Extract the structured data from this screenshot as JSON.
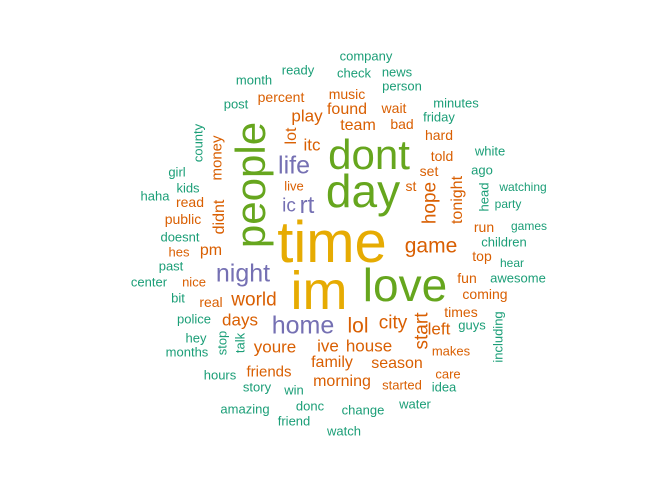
{
  "colors": {
    "green": "#1b9e77",
    "orange": "#d95f02",
    "purple": "#7570b3",
    "lime": "#66a61e",
    "gold": "#e6ab02"
  },
  "words": [
    {
      "text": "time",
      "color": "gold",
      "weight": 10
    },
    {
      "text": "im",
      "color": "gold",
      "weight": 9
    },
    {
      "text": "love",
      "color": "lime",
      "weight": 8
    },
    {
      "text": "day",
      "color": "lime",
      "weight": 8
    },
    {
      "text": "dont",
      "color": "lime",
      "weight": 8
    },
    {
      "text": "people",
      "color": "lime",
      "weight": 8
    },
    {
      "text": "home",
      "color": "purple",
      "weight": 5
    },
    {
      "text": "night",
      "color": "purple",
      "weight": 5
    },
    {
      "text": "life",
      "color": "purple",
      "weight": 5
    },
    {
      "text": "rt",
      "color": "purple",
      "weight": 5
    },
    {
      "text": "ic",
      "color": "purple",
      "weight": 4
    },
    {
      "text": "game",
      "color": "orange",
      "weight": 4
    },
    {
      "text": "lol",
      "color": "orange",
      "weight": 4
    },
    {
      "text": "world",
      "color": "orange",
      "weight": 4
    },
    {
      "text": "city",
      "color": "orange",
      "weight": 4
    },
    {
      "text": "hope",
      "color": "orange",
      "weight": 3
    },
    {
      "text": "start",
      "color": "orange",
      "weight": 3
    },
    {
      "text": "days",
      "color": "orange",
      "weight": 3
    },
    {
      "text": "youre",
      "color": "orange",
      "weight": 3
    },
    {
      "text": "ive",
      "color": "orange",
      "weight": 3
    },
    {
      "text": "house",
      "color": "orange",
      "weight": 3
    },
    {
      "text": "didnt",
      "color": "orange",
      "weight": 3
    },
    {
      "text": "tonight",
      "color": "orange",
      "weight": 3
    },
    {
      "text": "left",
      "color": "orange",
      "weight": 3
    },
    {
      "text": "play",
      "color": "orange",
      "weight": 3
    },
    {
      "text": "itc",
      "color": "orange",
      "weight": 3
    },
    {
      "text": "lot",
      "color": "orange",
      "weight": 3
    },
    {
      "text": "pm",
      "color": "orange",
      "weight": 3
    },
    {
      "text": "team",
      "color": "orange",
      "weight": 3
    },
    {
      "text": "found",
      "color": "orange",
      "weight": 3
    },
    {
      "text": "family",
      "color": "orange",
      "weight": 3
    },
    {
      "text": "season",
      "color": "orange",
      "weight": 3
    },
    {
      "text": "morning",
      "color": "orange",
      "weight": 3
    },
    {
      "text": "friends",
      "color": "orange",
      "weight": 2
    },
    {
      "text": "money",
      "color": "orange",
      "weight": 2
    },
    {
      "text": "music",
      "color": "orange",
      "weight": 2
    },
    {
      "text": "percent",
      "color": "orange",
      "weight": 2
    },
    {
      "text": "wait",
      "color": "orange",
      "weight": 2
    },
    {
      "text": "bad",
      "color": "orange",
      "weight": 2
    },
    {
      "text": "hard",
      "color": "orange",
      "weight": 2
    },
    {
      "text": "told",
      "color": "orange",
      "weight": 2
    },
    {
      "text": "set",
      "color": "orange",
      "weight": 2
    },
    {
      "text": "st",
      "color": "orange",
      "weight": 2
    },
    {
      "text": "run",
      "color": "orange",
      "weight": 2
    },
    {
      "text": "top",
      "color": "orange",
      "weight": 2
    },
    {
      "text": "fun",
      "color": "orange",
      "weight": 2
    },
    {
      "text": "coming",
      "color": "orange",
      "weight": 2
    },
    {
      "text": "times",
      "color": "orange",
      "weight": 2
    },
    {
      "text": "real",
      "color": "orange",
      "weight": 2
    },
    {
      "text": "read",
      "color": "orange",
      "weight": 2
    },
    {
      "text": "public",
      "color": "orange",
      "weight": 2
    },
    {
      "text": "hes",
      "color": "orange",
      "weight": 2
    },
    {
      "text": "nice",
      "color": "orange",
      "weight": 2
    },
    {
      "text": "live",
      "color": "orange",
      "weight": 2
    },
    {
      "text": "care",
      "color": "orange",
      "weight": 2
    },
    {
      "text": "started",
      "color": "orange",
      "weight": 2
    },
    {
      "text": "makes",
      "color": "orange",
      "weight": 2
    },
    {
      "text": "company",
      "color": "green",
      "weight": 1
    },
    {
      "text": "ready",
      "color": "green",
      "weight": 1
    },
    {
      "text": "check",
      "color": "green",
      "weight": 1
    },
    {
      "text": "news",
      "color": "green",
      "weight": 1
    },
    {
      "text": "month",
      "color": "green",
      "weight": 1
    },
    {
      "text": "person",
      "color": "green",
      "weight": 1
    },
    {
      "text": "post",
      "color": "green",
      "weight": 1
    },
    {
      "text": "friday",
      "color": "green",
      "weight": 1
    },
    {
      "text": "minutes",
      "color": "green",
      "weight": 1
    },
    {
      "text": "county",
      "color": "green",
      "weight": 1
    },
    {
      "text": "white",
      "color": "green",
      "weight": 1
    },
    {
      "text": "girl",
      "color": "green",
      "weight": 1
    },
    {
      "text": "ago",
      "color": "green",
      "weight": 1
    },
    {
      "text": "kids",
      "color": "green",
      "weight": 1
    },
    {
      "text": "haha",
      "color": "green",
      "weight": 1
    },
    {
      "text": "watching",
      "color": "green",
      "weight": 1
    },
    {
      "text": "head",
      "color": "green",
      "weight": 1
    },
    {
      "text": "party",
      "color": "green",
      "weight": 1
    },
    {
      "text": "doesnt",
      "color": "green",
      "weight": 1
    },
    {
      "text": "games",
      "color": "green",
      "weight": 1
    },
    {
      "text": "children",
      "color": "green",
      "weight": 1
    },
    {
      "text": "past",
      "color": "green",
      "weight": 1
    },
    {
      "text": "hear",
      "color": "green",
      "weight": 1
    },
    {
      "text": "center",
      "color": "green",
      "weight": 1
    },
    {
      "text": "awesome",
      "color": "green",
      "weight": 1
    },
    {
      "text": "bit",
      "color": "green",
      "weight": 1
    },
    {
      "text": "police",
      "color": "green",
      "weight": 1
    },
    {
      "text": "guys",
      "color": "green",
      "weight": 1
    },
    {
      "text": "including",
      "color": "green",
      "weight": 1
    },
    {
      "text": "hey",
      "color": "green",
      "weight": 1
    },
    {
      "text": "stop",
      "color": "green",
      "weight": 1
    },
    {
      "text": "talk",
      "color": "green",
      "weight": 1
    },
    {
      "text": "months",
      "color": "green",
      "weight": 1
    },
    {
      "text": "hours",
      "color": "green",
      "weight": 1
    },
    {
      "text": "story",
      "color": "green",
      "weight": 1
    },
    {
      "text": "win",
      "color": "green",
      "weight": 1
    },
    {
      "text": "idea",
      "color": "green",
      "weight": 1
    },
    {
      "text": "amazing",
      "color": "green",
      "weight": 1
    },
    {
      "text": "donc",
      "color": "green",
      "weight": 1
    },
    {
      "text": "change",
      "color": "green",
      "weight": 1
    },
    {
      "text": "water",
      "color": "green",
      "weight": 1
    },
    {
      "text": "friend",
      "color": "green",
      "weight": 1
    },
    {
      "text": "watch",
      "color": "green",
      "weight": 1
    }
  ]
}
